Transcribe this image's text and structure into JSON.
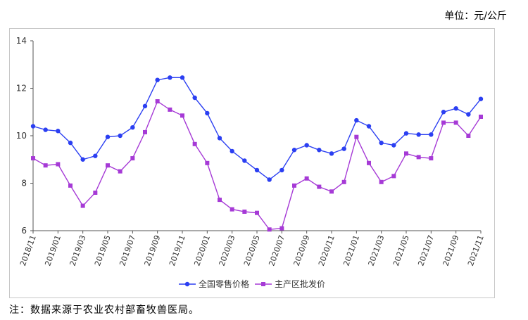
{
  "unit_label": "单位：元/公斤",
  "footnote": "注：数据来源于农业农村部畜牧兽医局。",
  "colors": {
    "retail": "#2b3ff2",
    "wholesale": "#a63ad6",
    "axis": "#555555",
    "frame": "#c8c8c8"
  },
  "chart_data": {
    "type": "line",
    "title": "",
    "xlabel": "",
    "ylabel": "",
    "ylim": [
      6,
      14
    ],
    "yticks": [
      6,
      8,
      10,
      12,
      14
    ],
    "grid": false,
    "legend_position": "bottom-center",
    "x": [
      "2018/11",
      "2018/12",
      "2019/01",
      "2019/02",
      "2019/03",
      "2019/04",
      "2019/05",
      "2019/06",
      "2019/07",
      "2019/08",
      "2019/09",
      "2019/10",
      "2019/11",
      "2019/12",
      "2020/01",
      "2020/02",
      "2020/03",
      "2020/04",
      "2020/05",
      "2020/06",
      "2020/07",
      "2020/08",
      "2020/09",
      "2020/10",
      "2020/11",
      "2020/12",
      "2021/01",
      "2021/02",
      "2021/03",
      "2021/04",
      "2021/05",
      "2021/06",
      "2021/07",
      "2021/08",
      "2021/09",
      "2021/10",
      "2021/11"
    ],
    "x_tick_labels": [
      "2018/11",
      "2019/01",
      "2019/03",
      "2019/05",
      "2019/07",
      "2019/09",
      "2019/11",
      "2020/01",
      "2020/03",
      "2020/05",
      "2020/07",
      "2020/09",
      "2020/11",
      "2021/01",
      "2021/03",
      "2021/05",
      "2021/07",
      "2021/09",
      "2021/11"
    ],
    "series": [
      {
        "name": "全国零售价格",
        "marker": "circle",
        "values": [
          10.4,
          10.25,
          10.2,
          9.7,
          9.0,
          9.15,
          9.95,
          10.0,
          10.35,
          11.25,
          12.35,
          12.45,
          12.45,
          11.6,
          10.95,
          9.9,
          9.35,
          8.95,
          8.55,
          8.15,
          8.55,
          9.4,
          9.6,
          9.4,
          9.25,
          9.45,
          10.65,
          10.4,
          9.7,
          9.6,
          10.1,
          10.05,
          10.05,
          11.0,
          11.15,
          10.9,
          11.55
        ]
      },
      {
        "name": "主产区批发价",
        "marker": "square",
        "values": [
          9.05,
          8.75,
          8.8,
          7.9,
          7.05,
          7.6,
          8.75,
          8.5,
          9.05,
          10.15,
          11.45,
          11.1,
          10.85,
          9.65,
          8.85,
          7.3,
          6.9,
          6.8,
          6.75,
          6.05,
          6.1,
          7.9,
          8.2,
          7.85,
          7.65,
          8.05,
          9.95,
          8.85,
          8.05,
          8.3,
          9.25,
          9.1,
          9.05,
          10.55,
          10.55,
          10.0,
          10.8
        ]
      }
    ]
  }
}
